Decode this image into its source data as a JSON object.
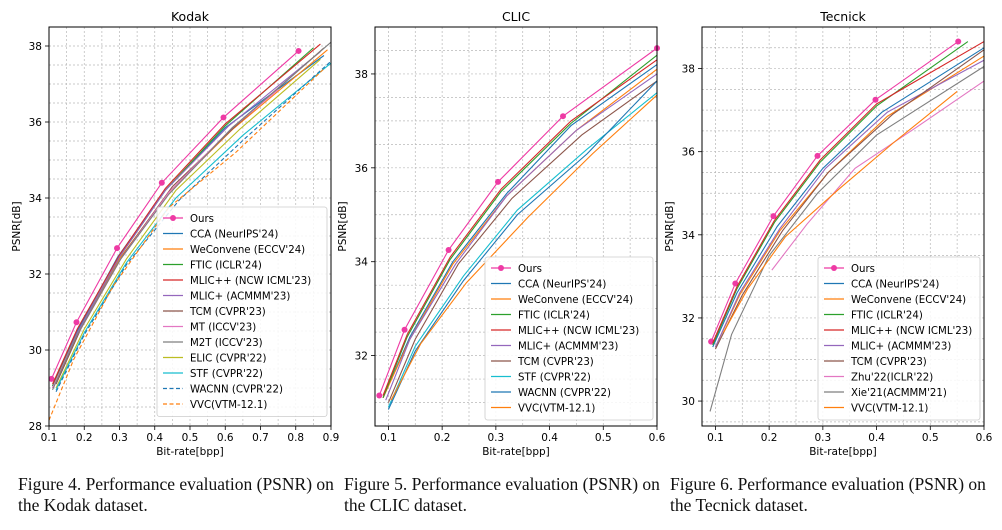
{
  "colors": {
    "Ours": "#ee3aa4",
    "CCA (NeurIPS'24)": "#1f77b4",
    "WeConvene (ECCV'24)": "#ff7f0e",
    "FTIC (ICLR'24)": "#2ca02c",
    "MLIC++ (NCW ICML'23)": "#d62728",
    "MLIC+ (ACMMM'23)": "#9467bd",
    "TCM (CVPR'23)": "#8c564b",
    "MT (ICCV'23)": "#e377c2",
    "M2T (ICCV'23)": "#7f7f7f",
    "ELIC (CVPR'22)": "#bcbd22",
    "STF (CVPR'22)": "#17becf",
    "WACNN (CVPR'22)": "#1f77b4",
    "VVC(VTM-12.1)": "#ff7f0e",
    "Zhu'22(ICLR'22)": "#e377c2",
    "Xie'21(ACMMM'21)": "#7f7f7f"
  },
  "captions": [
    {
      "label": "Figure 4.",
      "text": "Performance evaluation (PSNR) on the Kodak dataset."
    },
    {
      "label": "Figure 5.",
      "text": "Performance evaluation (PSNR) on the CLIC dataset."
    },
    {
      "label": "Figure 6.",
      "text": "Performance evaluation (PSNR) on the Tecnick dataset."
    }
  ],
  "chart_data": [
    {
      "type": "line",
      "title": "Kodak",
      "xlabel": "Bit-rate[bpp]",
      "ylabel": "PSNR[dB]",
      "xlim": [
        0.1,
        0.9
      ],
      "ylim": [
        28,
        38.5
      ],
      "xticks": [
        "0.1",
        "0.2",
        "0.3",
        "0.4",
        "0.5",
        "0.6",
        "0.7",
        "0.8",
        "0.9"
      ],
      "yticks": [
        "28",
        "30",
        "32",
        "34",
        "36",
        "38"
      ],
      "grid": true,
      "legend_position": "lower-right",
      "series": [
        {
          "name": "Ours",
          "x": [
            0.107,
            0.178,
            0.293,
            0.42,
            0.595,
            0.808
          ],
          "y": [
            29.24,
            30.73,
            32.68,
            34.4,
            36.12,
            37.87
          ]
        },
        {
          "name": "CCA (NeurIPS'24)",
          "x": [
            0.11,
            0.18,
            0.295,
            0.43,
            0.6,
            0.88
          ],
          "y": [
            29.05,
            30.5,
            32.45,
            34.2,
            35.85,
            37.75
          ]
        },
        {
          "name": "WeConvene (ECCV'24)",
          "x": [
            0.11,
            0.18,
            0.3,
            0.44,
            0.62,
            0.89
          ],
          "y": [
            29.0,
            30.42,
            32.4,
            34.15,
            35.8,
            37.9
          ]
        },
        {
          "name": "FTIC (ICLR'24)",
          "x": [
            0.11,
            0.18,
            0.3,
            0.43,
            0.6,
            0.85
          ],
          "y": [
            29.05,
            30.45,
            32.45,
            34.2,
            35.9,
            37.95
          ]
        },
        {
          "name": "MLIC++ (NCW ICML'23)",
          "x": [
            0.11,
            0.18,
            0.3,
            0.43,
            0.6,
            0.87
          ],
          "y": [
            29.1,
            30.55,
            32.5,
            34.25,
            35.95,
            38.05
          ]
        },
        {
          "name": "MLIC+ (ACMMM'23)",
          "x": [
            0.11,
            0.18,
            0.3,
            0.43,
            0.61,
            0.87
          ],
          "y": [
            29.0,
            30.45,
            32.45,
            34.2,
            35.9,
            37.85
          ]
        },
        {
          "name": "TCM (CVPR'23)",
          "x": [
            0.12,
            0.19,
            0.31,
            0.45,
            0.63,
            0.88
          ],
          "y": [
            29.1,
            30.55,
            32.5,
            34.3,
            35.9,
            37.95
          ]
        },
        {
          "name": "MT (ICCV'23)",
          "x": [
            0.11,
            0.18,
            0.3,
            0.44,
            0.62,
            0.75
          ],
          "y": [
            29.0,
            30.4,
            32.35,
            34.15,
            35.85,
            36.85
          ]
        },
        {
          "name": "M2T (ICCV'23)",
          "x": [
            0.11,
            0.18,
            0.3,
            0.44,
            0.62,
            0.9
          ],
          "y": [
            28.95,
            30.4,
            32.35,
            34.1,
            35.85,
            38.1
          ]
        },
        {
          "name": "ELIC (CVPR'22)",
          "x": [
            0.12,
            0.2,
            0.32,
            0.46,
            0.64,
            0.87
          ],
          "y": [
            29.0,
            30.55,
            32.4,
            34.2,
            35.8,
            37.65
          ]
        },
        {
          "name": "STF (CVPR'22)",
          "x": [
            0.12,
            0.2,
            0.32,
            0.46,
            0.65,
            0.9
          ],
          "y": [
            28.95,
            30.45,
            32.3,
            34.0,
            35.65,
            37.55
          ]
        },
        {
          "name": "WACNN (CVPR'22)",
          "x": [
            0.12,
            0.2,
            0.32,
            0.47,
            0.66,
            0.9
          ],
          "y": [
            28.9,
            30.4,
            32.25,
            33.95,
            35.6,
            37.6
          ]
        },
        {
          "name": "VVC(VTM-12.1)",
          "x": [
            0.1,
            0.17,
            0.28,
            0.44,
            0.63,
            0.88
          ],
          "y": [
            28.15,
            29.75,
            31.65,
            33.75,
            35.2,
            37.4
          ]
        }
      ]
    },
    {
      "type": "line",
      "title": "CLIC",
      "xlabel": "Bit-rate[bpp]",
      "ylabel": "PSNR[dB]",
      "xlim": [
        0.075,
        0.6
      ],
      "ylim": [
        30.5,
        39.0
      ],
      "xticks": [
        "0.1",
        "0.2",
        "0.3",
        "0.4",
        "0.5",
        "0.6"
      ],
      "yticks": [
        "32",
        "34",
        "36",
        "38"
      ],
      "grid": true,
      "legend_position": "lower-right",
      "series": [
        {
          "name": "Ours",
          "x": [
            0.083,
            0.13,
            0.212,
            0.304,
            0.425,
            0.6
          ],
          "y": [
            31.15,
            32.55,
            34.25,
            35.7,
            37.1,
            38.55
          ]
        },
        {
          "name": "CCA (NeurIPS'24)",
          "x": [
            0.09,
            0.14,
            0.22,
            0.32,
            0.44,
            0.6
          ],
          "y": [
            31.1,
            32.4,
            34.0,
            35.45,
            36.9,
            38.2
          ]
        },
        {
          "name": "WeConvene (ECCV'24)",
          "x": [
            0.09,
            0.14,
            0.22,
            0.32,
            0.45,
            0.6
          ],
          "y": [
            31.1,
            32.35,
            33.95,
            35.4,
            36.8,
            38.1
          ]
        },
        {
          "name": "FTIC (ICLR'24)",
          "x": [
            0.09,
            0.135,
            0.215,
            0.31,
            0.44,
            0.6
          ],
          "y": [
            31.1,
            32.4,
            34.05,
            35.5,
            36.95,
            38.4
          ]
        },
        {
          "name": "MLIC++ (NCW ICML'23)",
          "x": [
            0.09,
            0.135,
            0.215,
            0.31,
            0.44,
            0.6
          ],
          "y": [
            31.15,
            32.45,
            34.1,
            35.55,
            37.0,
            38.3
          ]
        },
        {
          "name": "MLIC+ (ACMMM'23)",
          "x": [
            0.095,
            0.14,
            0.225,
            0.32,
            0.45,
            0.6
          ],
          "y": [
            31.05,
            32.35,
            33.95,
            35.4,
            36.8,
            38.0
          ]
        },
        {
          "name": "TCM (CVPR'23)",
          "x": [
            0.1,
            0.15,
            0.23,
            0.33,
            0.46,
            0.6
          ],
          "y": [
            31.0,
            32.35,
            33.95,
            35.35,
            36.7,
            37.85
          ]
        },
        {
          "name": "STF (CVPR'22)",
          "x": [
            0.1,
            0.15,
            0.24,
            0.34,
            0.47,
            0.6
          ],
          "y": [
            30.9,
            32.2,
            33.7,
            35.1,
            36.4,
            37.6
          ]
        },
        {
          "name": "WACNN (CVPR'22)",
          "x": [
            0.1,
            0.15,
            0.24,
            0.34,
            0.47,
            0.6
          ],
          "y": [
            30.85,
            32.1,
            33.6,
            35.0,
            36.3,
            37.85
          ]
        },
        {
          "name": "VVC(VTM-12.1)",
          "x": [
            0.105,
            0.16,
            0.245,
            0.36,
            0.48,
            0.6
          ],
          "y": [
            31.05,
            32.25,
            33.55,
            34.95,
            36.3,
            37.55
          ]
        }
      ]
    },
    {
      "type": "line",
      "title": "Tecnick",
      "xlabel": "Bit-rate[bpp]",
      "ylabel": "PSNR[dB]",
      "xlim": [
        0.075,
        0.6
      ],
      "ylim": [
        29.4,
        39.0
      ],
      "xticks": [
        "0.1",
        "0.2",
        "0.3",
        "0.4",
        "0.5",
        "0.6"
      ],
      "yticks": [
        "30",
        "32",
        "34",
        "36",
        "38"
      ],
      "grid": true,
      "legend_position": "lower-right",
      "series": [
        {
          "name": "Ours",
          "x": [
            0.092,
            0.137,
            0.208,
            0.29,
            0.398,
            0.552
          ],
          "y": [
            31.43,
            32.83,
            34.45,
            35.9,
            37.25,
            38.65
          ]
        },
        {
          "name": "CCA (NeurIPS'24)",
          "x": [
            0.095,
            0.14,
            0.215,
            0.3,
            0.41,
            0.6
          ],
          "y": [
            31.3,
            32.6,
            34.2,
            35.6,
            36.95,
            38.5
          ]
        },
        {
          "name": "WeConvene (ECCV'24)",
          "x": [
            0.1,
            0.145,
            0.22,
            0.31,
            0.42,
            0.6
          ],
          "y": [
            31.3,
            32.55,
            34.1,
            35.5,
            36.85,
            38.3
          ]
        },
        {
          "name": "FTIC (ICLR'24)",
          "x": [
            0.095,
            0.14,
            0.21,
            0.295,
            0.4,
            0.57
          ],
          "y": [
            31.35,
            32.7,
            34.3,
            35.75,
            37.1,
            38.65
          ]
        },
        {
          "name": "MLIC++ (NCW ICML'23)",
          "x": [
            0.095,
            0.14,
            0.21,
            0.295,
            0.4,
            0.6
          ],
          "y": [
            31.4,
            32.75,
            34.35,
            35.8,
            37.15,
            38.65
          ]
        },
        {
          "name": "MLIC+ (ACMMM'23)",
          "x": [
            0.1,
            0.145,
            0.22,
            0.305,
            0.42,
            0.6
          ],
          "y": [
            31.3,
            32.6,
            34.15,
            35.6,
            36.95,
            38.2
          ]
        },
        {
          "name": "TCM (CVPR'23)",
          "x": [
            0.1,
            0.15,
            0.225,
            0.31,
            0.43,
            0.6
          ],
          "y": [
            31.25,
            32.55,
            34.1,
            35.5,
            36.9,
            38.45
          ]
        },
        {
          "name": "Zhu'22(ICLR'22)",
          "x": [
            0.205,
            0.27,
            0.36,
            0.47,
            0.6
          ],
          "y": [
            33.15,
            34.25,
            35.6,
            36.55,
            37.7
          ]
        },
        {
          "name": "Xie'21(ACMMM'21)",
          "x": [
            0.09,
            0.13,
            0.2,
            0.29,
            0.4,
            0.6
          ],
          "y": [
            29.75,
            31.6,
            33.5,
            35.0,
            36.4,
            38.05
          ]
        },
        {
          "name": "VVC(VTM-12.1)",
          "x": [
            0.115,
            0.16,
            0.23,
            0.33,
            0.43,
            0.55
          ],
          "y": [
            31.65,
            32.7,
            33.95,
            35.1,
            36.2,
            37.45
          ]
        }
      ]
    }
  ]
}
